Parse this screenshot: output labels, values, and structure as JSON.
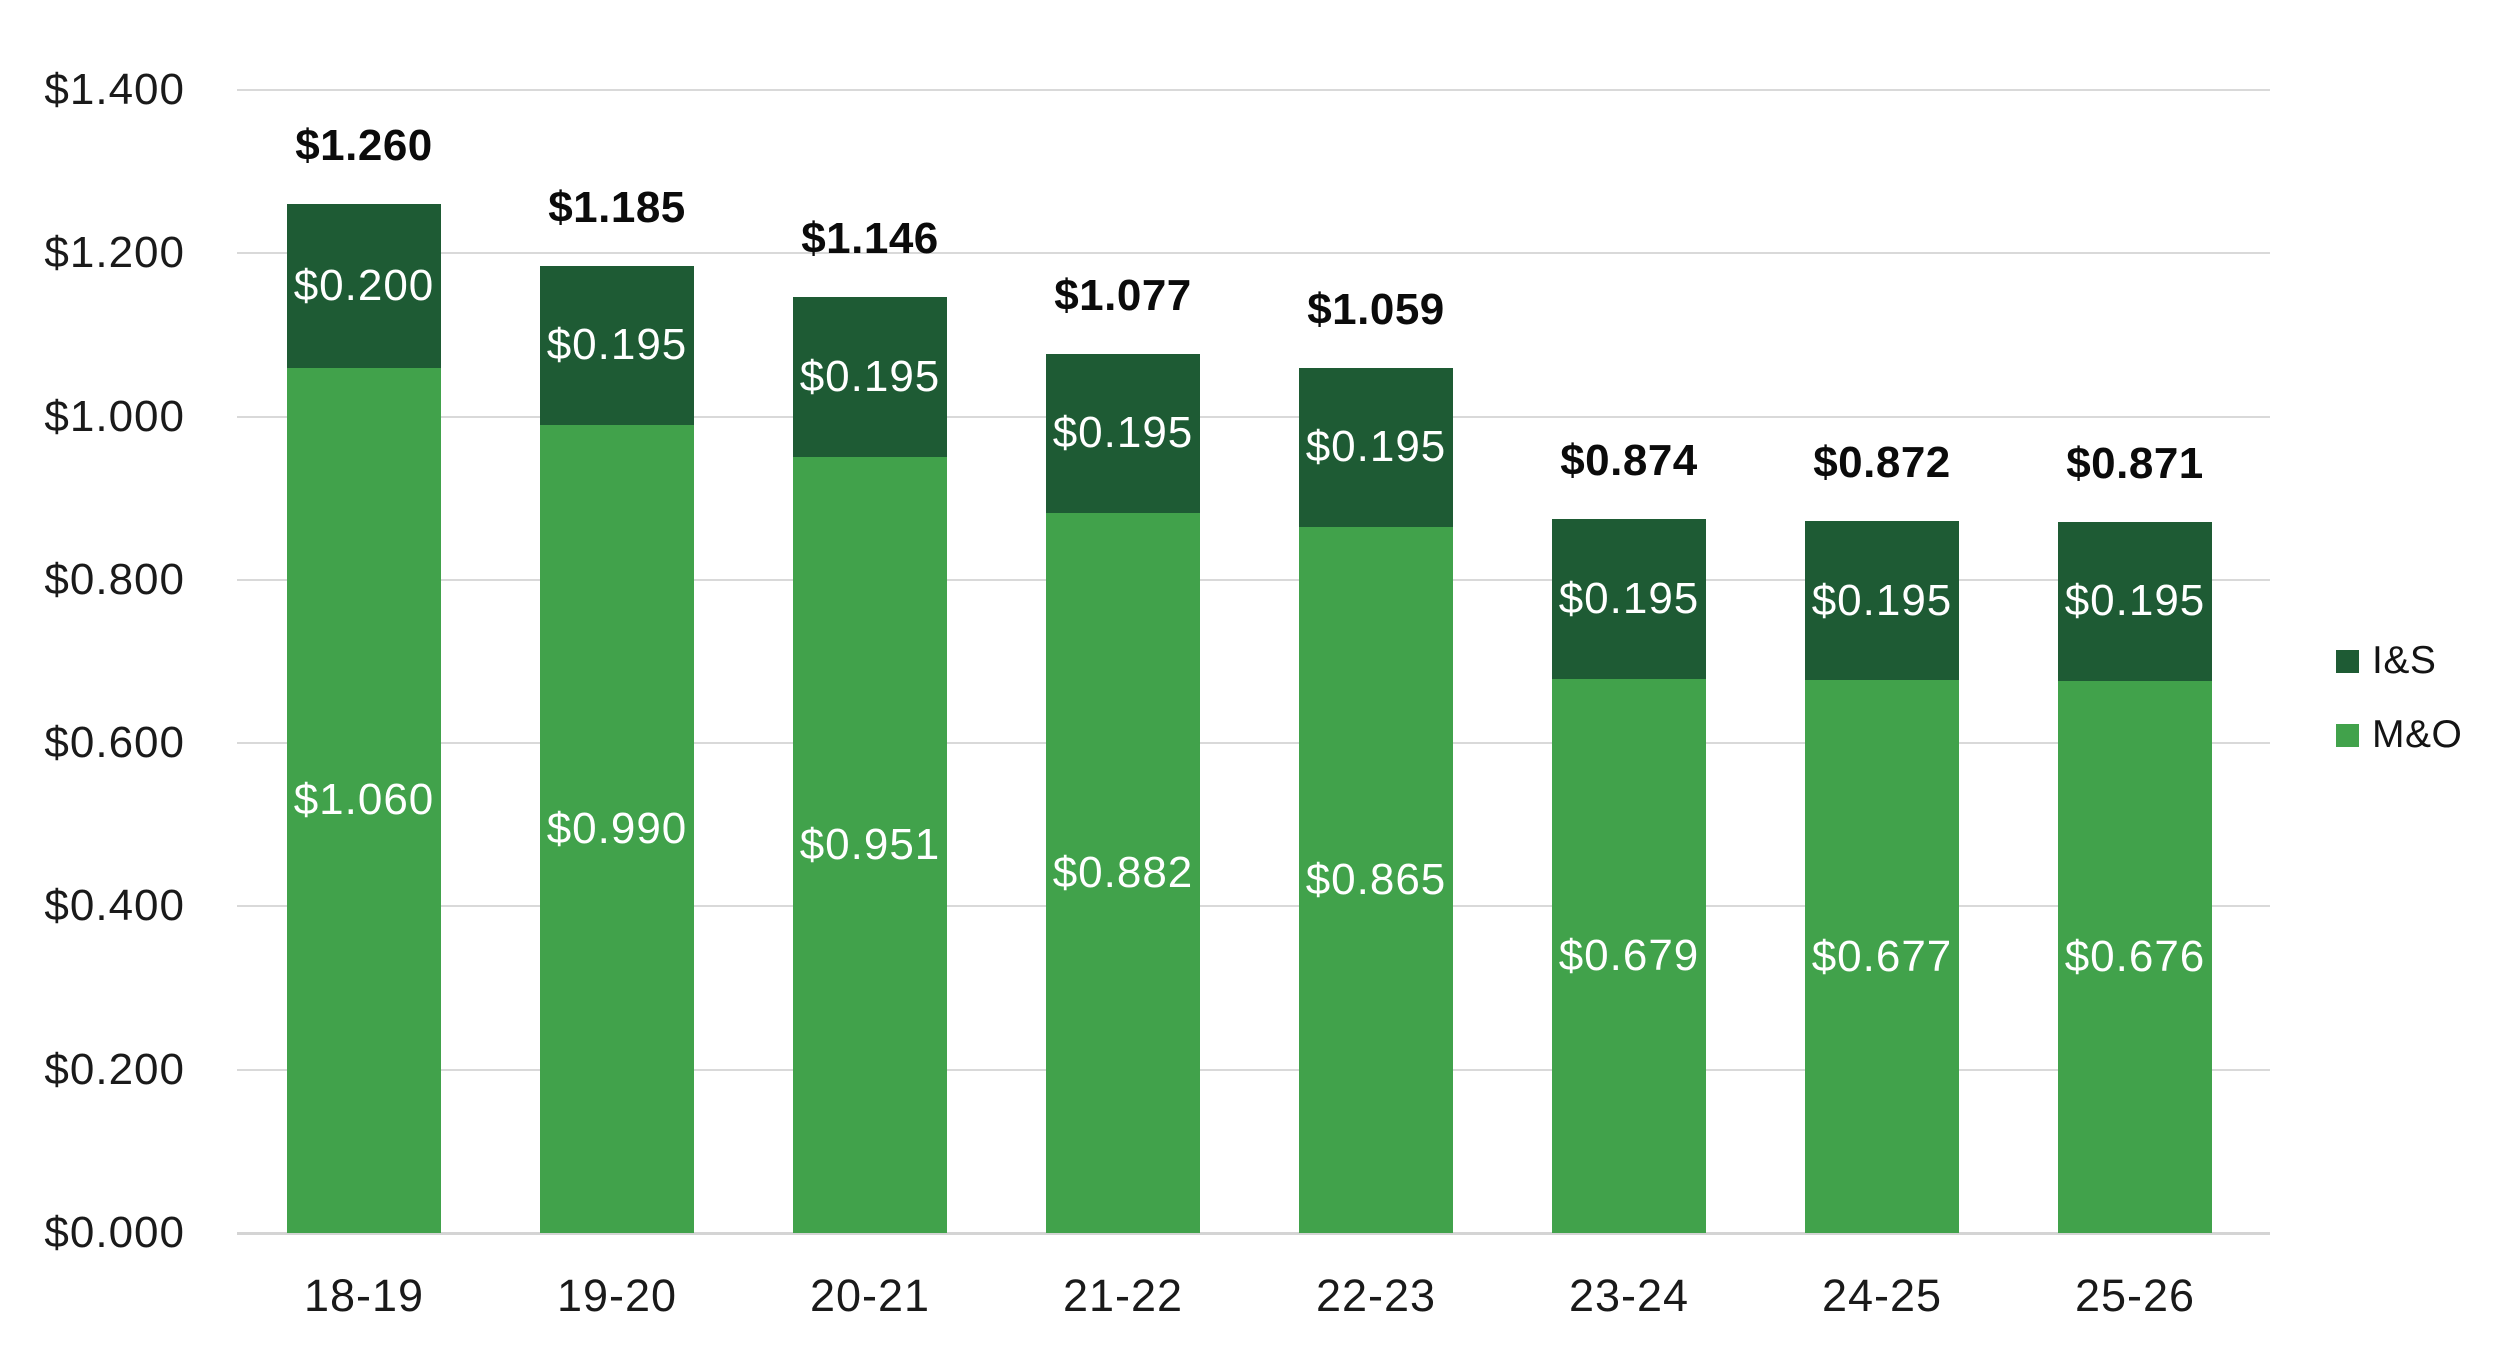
{
  "chart_data": {
    "type": "bar",
    "stacked": true,
    "title": "",
    "xlabel": "",
    "ylabel": "",
    "categories": [
      "18-19",
      "19-20",
      "20-21",
      "21-22",
      "22-23",
      "23-24",
      "24-25",
      "25-26"
    ],
    "series": [
      {
        "name": "I&S",
        "color": "#1E5B34",
        "values": [
          0.2,
          0.195,
          0.195,
          0.195,
          0.195,
          0.195,
          0.195,
          0.195
        ],
        "labels": [
          "$0.200",
          "$0.195",
          "$0.195",
          "$0.195",
          "$0.195",
          "$0.195",
          "$0.195",
          "$0.195"
        ]
      },
      {
        "name": "M&O",
        "color": "#41A24B",
        "values": [
          1.06,
          0.99,
          0.951,
          0.882,
          0.865,
          0.679,
          0.677,
          0.676
        ],
        "labels": [
          "$1.060",
          "$0.990",
          "$0.951",
          "$0.882",
          "$0.865",
          "$0.679",
          "$0.677",
          "$0.676"
        ]
      }
    ],
    "totals": {
      "values": [
        1.26,
        1.185,
        1.146,
        1.077,
        1.059,
        0.874,
        0.872,
        0.871
      ],
      "labels": [
        "$1.260",
        "$1.185",
        "$1.146",
        "$1.077",
        "$1.059",
        "$0.874",
        "$0.872",
        "$0.871"
      ]
    },
    "y_axis": {
      "min": 0.0,
      "max": 1.4,
      "tick_step": 0.2,
      "tick_labels": [
        "$0.000",
        "$0.200",
        "$0.400",
        "$0.600",
        "$0.800",
        "$1.000",
        "$1.200",
        "$1.400"
      ],
      "grid": true
    },
    "legend": {
      "position": "right",
      "entries": [
        {
          "label": "I&S",
          "color": "#1E5B34"
        },
        {
          "label": "M&O",
          "color": "#41A24B"
        }
      ]
    },
    "styles": {
      "background": "#FFFFFF",
      "grid_color": "#D9D9D9",
      "axis_text_color": "#1A1A1A",
      "total_text_color": "#0B0B0B",
      "segment_text_color": "#FFFFFF"
    }
  }
}
